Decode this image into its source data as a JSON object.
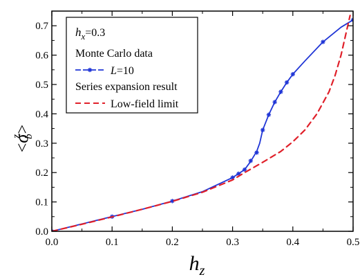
{
  "chart_data": {
    "type": "line",
    "title": "",
    "xlabel": {
      "base": "h",
      "sub": "z"
    },
    "ylabel": {
      "open": "<",
      "base": "σ",
      "sup": "z",
      "sub": "b",
      "close": ">"
    },
    "xlim": [
      0.0,
      0.5
    ],
    "ylim": [
      0.0,
      0.75
    ],
    "x_ticks": [
      "0.0",
      "0.1",
      "0.2",
      "0.3",
      "0.4",
      "0.5"
    ],
    "y_ticks": [
      "0.0",
      "0.1",
      "0.2",
      "0.3",
      "0.4",
      "0.5",
      "0.6",
      "0.7"
    ],
    "grid": false,
    "legend_position": "top-left",
    "legend": {
      "param_base": "h",
      "param_sub": "x",
      "param_value": "=0.3",
      "section1": "Monte Carlo data",
      "entry1_symbol": "L",
      "entry1_value": "=10",
      "section2": "Series expansion result",
      "entry2_label": "Low-field limit"
    },
    "colors": {
      "mc": "#1f35d6",
      "series": "#e0202a",
      "axis": "#000000"
    },
    "series": [
      {
        "name": "L=10",
        "style": "solid-line-with-star-markers",
        "color": "#1f35d6",
        "curve": [
          [
            0.0,
            0.0
          ],
          [
            0.05,
            0.025
          ],
          [
            0.1,
            0.05
          ],
          [
            0.15,
            0.075
          ],
          [
            0.2,
            0.103
          ],
          [
            0.25,
            0.135
          ],
          [
            0.3,
            0.183
          ],
          [
            0.32,
            0.21
          ],
          [
            0.33,
            0.238
          ],
          [
            0.34,
            0.272
          ],
          [
            0.345,
            0.3
          ],
          [
            0.35,
            0.345
          ],
          [
            0.36,
            0.397
          ],
          [
            0.37,
            0.44
          ],
          [
            0.38,
            0.475
          ],
          [
            0.39,
            0.507
          ],
          [
            0.4,
            0.535
          ],
          [
            0.42,
            0.58
          ],
          [
            0.45,
            0.645
          ],
          [
            0.48,
            0.695
          ],
          [
            0.5,
            0.72
          ]
        ],
        "markers": [
          [
            0.0,
            0.0
          ],
          [
            0.1,
            0.05
          ],
          [
            0.2,
            0.103
          ],
          [
            0.3,
            0.183
          ],
          [
            0.31,
            0.196
          ],
          [
            0.32,
            0.21
          ],
          [
            0.33,
            0.24
          ],
          [
            0.34,
            0.268
          ],
          [
            0.35,
            0.345
          ],
          [
            0.36,
            0.397
          ],
          [
            0.37,
            0.44
          ],
          [
            0.38,
            0.475
          ],
          [
            0.39,
            0.507
          ],
          [
            0.4,
            0.535
          ],
          [
            0.45,
            0.645
          ],
          [
            0.5,
            0.72
          ]
        ]
      },
      {
        "name": "Low-field limit",
        "style": "dashed-line",
        "color": "#e0202a",
        "curve": [
          [
            0.0,
            0.0
          ],
          [
            0.05,
            0.024
          ],
          [
            0.1,
            0.049
          ],
          [
            0.15,
            0.075
          ],
          [
            0.2,
            0.102
          ],
          [
            0.25,
            0.133
          ],
          [
            0.3,
            0.175
          ],
          [
            0.32,
            0.2
          ],
          [
            0.35,
            0.235
          ],
          [
            0.38,
            0.272
          ],
          [
            0.4,
            0.305
          ],
          [
            0.42,
            0.345
          ],
          [
            0.44,
            0.4
          ],
          [
            0.46,
            0.475
          ],
          [
            0.47,
            0.53
          ],
          [
            0.48,
            0.6
          ],
          [
            0.49,
            0.69
          ],
          [
            0.495,
            0.735
          ]
        ]
      }
    ]
  }
}
